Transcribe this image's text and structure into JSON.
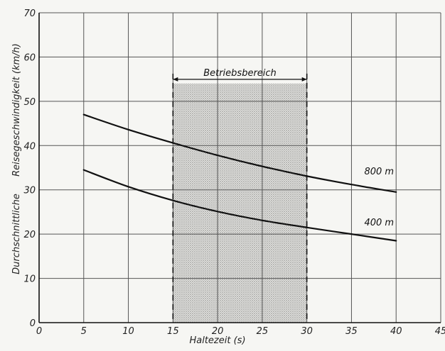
{
  "chart_data": {
    "type": "line",
    "title": "",
    "xlabel": "Haltezeit  (s)",
    "ylabel_lines": [
      "Reisegeschwindigkeit  (km/h)",
      "Durchschnittliche"
    ],
    "xlim": [
      0,
      45
    ],
    "ylim": [
      0,
      70
    ],
    "x_ticks": [
      0,
      5,
      10,
      15,
      20,
      25,
      30,
      35,
      40,
      45
    ],
    "y_ticks": [
      0,
      10,
      20,
      30,
      40,
      50,
      60,
      70
    ],
    "grid": true,
    "shaded_region": {
      "label": "Betriebsbereich",
      "x_from": 15,
      "x_to": 30,
      "y_top": 54
    },
    "series": [
      {
        "name": "800 m",
        "x": [
          5,
          10,
          15,
          20,
          25,
          30,
          35,
          40
        ],
        "y": [
          47,
          43.6,
          40.6,
          37.8,
          35.3,
          33.1,
          31.2,
          29.5
        ]
      },
      {
        "name": "400 m",
        "x": [
          5,
          10,
          15,
          20,
          25,
          30,
          35,
          40
        ],
        "y": [
          34.5,
          30.7,
          27.6,
          25.1,
          23.1,
          21.5,
          20.0,
          18.5
        ]
      }
    ]
  }
}
